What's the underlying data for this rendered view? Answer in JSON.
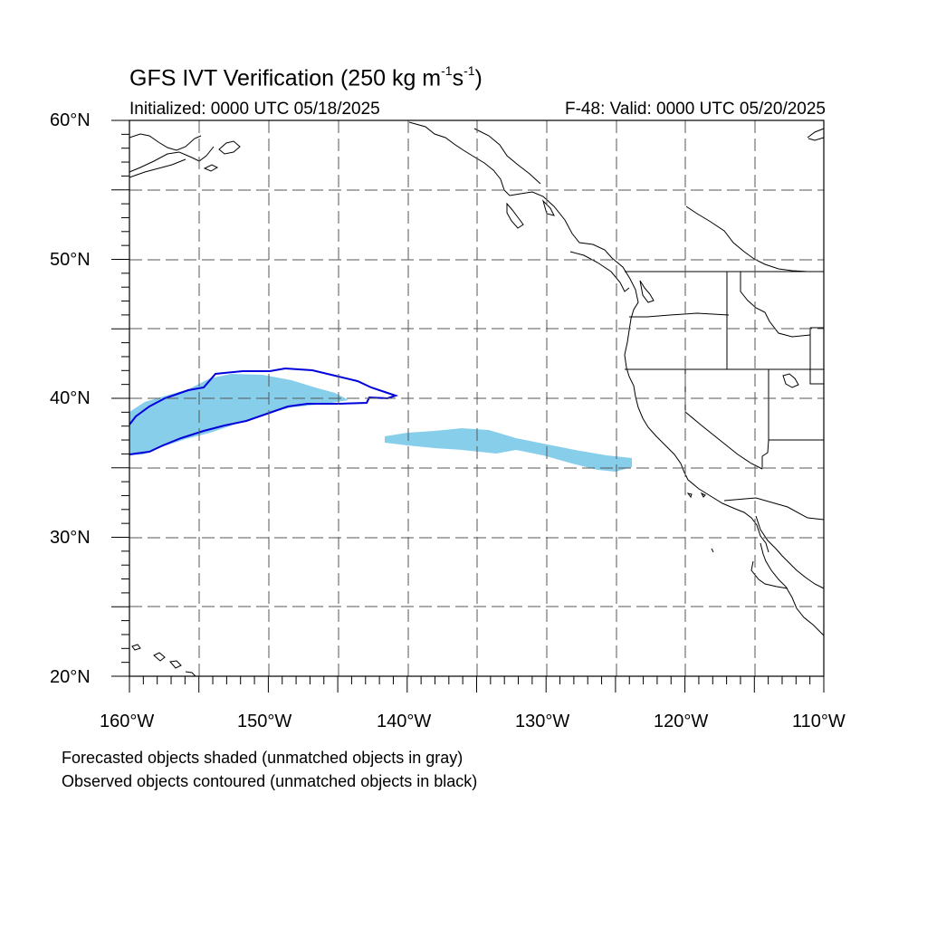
{
  "header": {
    "title_main": "GFS IVT Verification (250 kg m",
    "title_sup1": "-1",
    "title_mid": "s",
    "title_sup2": "-1",
    "title_end": ")",
    "initialized": "Initialized: 0000 UTC 05/18/2025",
    "valid": "F-48: Valid: 0000 UTC 05/20/2025"
  },
  "axes": {
    "lat_labels": [
      "60°N",
      "50°N",
      "40°N",
      "30°N",
      "20°N"
    ],
    "lon_labels": [
      "160°W",
      "150°W",
      "140°W",
      "130°W",
      "120°W",
      "110°W"
    ],
    "lat_range": [
      20,
      60
    ],
    "lon_range": [
      -160,
      -110
    ]
  },
  "legend": {
    "line1": "Forecasted objects shaded (unmatched objects in gray)",
    "line2": "Observed objects contoured (unmatched objects in black)"
  },
  "colors": {
    "forecast_fill": "#87ceeb",
    "observed_contour": "#0000dd",
    "coastline": "#000000",
    "grid": "#555555"
  }
}
